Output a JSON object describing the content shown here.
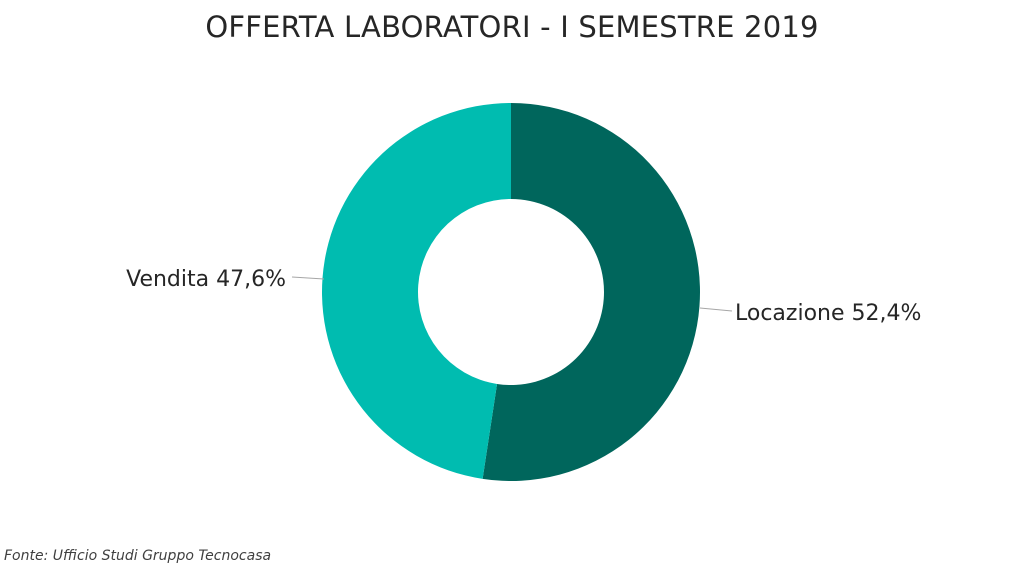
{
  "chart_data": {
    "type": "pie",
    "variant": "donut",
    "title": "OFFERTA LABORATORI - I SEMESTRE 2019",
    "start_angle_deg": 0,
    "direction": "clockwise",
    "slices": [
      {
        "label": "Locazione",
        "value": 52.4,
        "value_text": "52,4%",
        "color": "#00665c"
      },
      {
        "label": "Vendita",
        "value": 47.6,
        "value_text": "47,6%",
        "color": "#00bcb0"
      }
    ]
  },
  "footer": {
    "source": "Fonte: Ufficio Studi Gruppo Tecnocasa"
  }
}
